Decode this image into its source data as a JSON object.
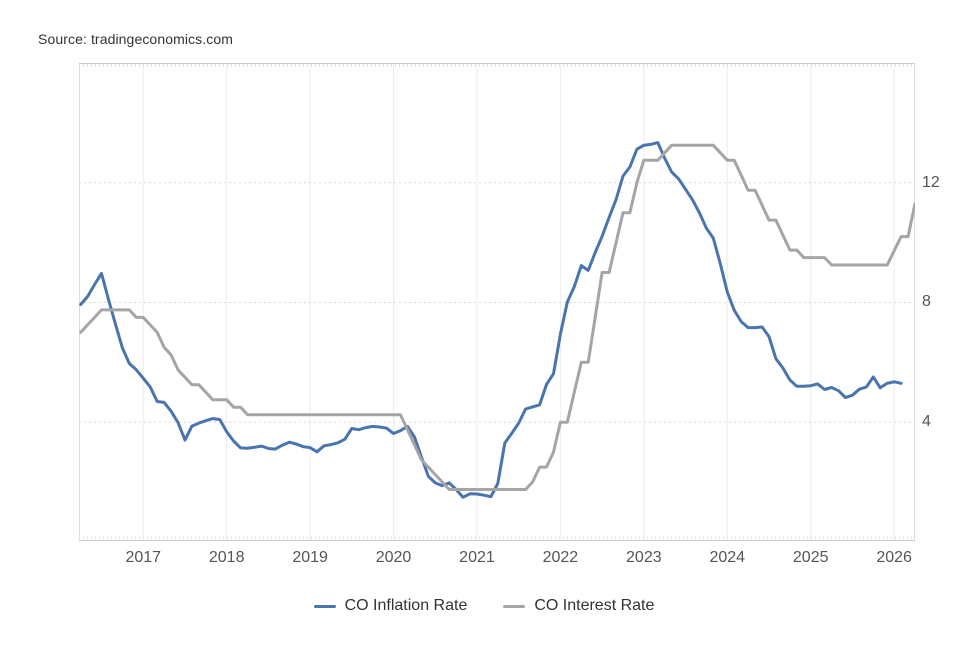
{
  "source": {
    "label": "Source: tradingeconomics.com"
  },
  "legend": [
    {
      "label": "CO Inflation Rate",
      "color": "#4a74ad"
    },
    {
      "label": "CO Interest Rate",
      "color": "#a5a5a5"
    }
  ],
  "colors": {
    "background": "#ffffff",
    "inflation_line": "#4a74ad",
    "interest_line": "#a5a5a5",
    "grid_line": "#ececec",
    "grid_dotted": "#d9d9d9",
    "plot_border": "#cccccc",
    "tick_text": "#555555",
    "legend_text": "#333333"
  },
  "chart_data": {
    "type": "line",
    "title": "",
    "xlabel": "",
    "ylabel": "",
    "x_range": [
      2016.23,
      2026.25
    ],
    "y_range": [
      0.03,
      16
    ],
    "x_ticks": [
      {
        "t": 2017,
        "label": "2017"
      },
      {
        "t": 2018,
        "label": "2018"
      },
      {
        "t": 2019,
        "label": "2019"
      },
      {
        "t": 2020,
        "label": "2020"
      },
      {
        "t": 2021,
        "label": "2021"
      },
      {
        "t": 2022,
        "label": "2022"
      },
      {
        "t": 2023,
        "label": "2023"
      },
      {
        "t": 2024,
        "label": "2024"
      },
      {
        "t": 2025,
        "label": "2025"
      },
      {
        "t": 2026,
        "label": "2026"
      }
    ],
    "y_ticks": [
      {
        "v": 4,
        "label": "4"
      },
      {
        "v": 8,
        "label": "8"
      },
      {
        "v": 12,
        "label": "12"
      }
    ],
    "grid": true,
    "legend_position": "bottom",
    "series": [
      {
        "name": "CO Inflation Rate",
        "color": "#4a74ad",
        "width": 3,
        "points": [
          [
            2016.25,
            7.93
          ],
          [
            2016.333,
            8.2
          ],
          [
            2016.417,
            8.6
          ],
          [
            2016.5,
            8.97
          ],
          [
            2016.583,
            8.1
          ],
          [
            2016.667,
            7.27
          ],
          [
            2016.75,
            6.48
          ],
          [
            2016.833,
            5.96
          ],
          [
            2016.917,
            5.75
          ],
          [
            2017.0,
            5.47
          ],
          [
            2017.083,
            5.18
          ],
          [
            2017.167,
            4.69
          ],
          [
            2017.25,
            4.66
          ],
          [
            2017.333,
            4.37
          ],
          [
            2017.417,
            3.99
          ],
          [
            2017.5,
            3.4
          ],
          [
            2017.583,
            3.87
          ],
          [
            2017.667,
            3.97
          ],
          [
            2017.75,
            4.05
          ],
          [
            2017.833,
            4.12
          ],
          [
            2017.917,
            4.09
          ],
          [
            2018.0,
            3.68
          ],
          [
            2018.083,
            3.37
          ],
          [
            2018.167,
            3.14
          ],
          [
            2018.25,
            3.13
          ],
          [
            2018.333,
            3.16
          ],
          [
            2018.417,
            3.2
          ],
          [
            2018.5,
            3.12
          ],
          [
            2018.583,
            3.1
          ],
          [
            2018.667,
            3.23
          ],
          [
            2018.75,
            3.33
          ],
          [
            2018.833,
            3.27
          ],
          [
            2018.917,
            3.18
          ],
          [
            2019.0,
            3.15
          ],
          [
            2019.083,
            3.01
          ],
          [
            2019.167,
            3.21
          ],
          [
            2019.25,
            3.25
          ],
          [
            2019.333,
            3.31
          ],
          [
            2019.417,
            3.43
          ],
          [
            2019.5,
            3.79
          ],
          [
            2019.583,
            3.75
          ],
          [
            2019.667,
            3.82
          ],
          [
            2019.75,
            3.86
          ],
          [
            2019.833,
            3.84
          ],
          [
            2019.917,
            3.8
          ],
          [
            2020.0,
            3.62
          ],
          [
            2020.083,
            3.72
          ],
          [
            2020.167,
            3.86
          ],
          [
            2020.25,
            3.51
          ],
          [
            2020.333,
            2.85
          ],
          [
            2020.417,
            2.19
          ],
          [
            2020.5,
            1.97
          ],
          [
            2020.583,
            1.88
          ],
          [
            2020.667,
            1.97
          ],
          [
            2020.75,
            1.75
          ],
          [
            2020.833,
            1.49
          ],
          [
            2020.917,
            1.61
          ],
          [
            2021.0,
            1.6
          ],
          [
            2021.083,
            1.56
          ],
          [
            2021.167,
            1.51
          ],
          [
            2021.25,
            1.95
          ],
          [
            2021.333,
            3.3
          ],
          [
            2021.417,
            3.63
          ],
          [
            2021.5,
            3.97
          ],
          [
            2021.583,
            4.44
          ],
          [
            2021.667,
            4.51
          ],
          [
            2021.75,
            4.58
          ],
          [
            2021.833,
            5.26
          ],
          [
            2021.917,
            5.62
          ],
          [
            2022.0,
            6.94
          ],
          [
            2022.083,
            8.01
          ],
          [
            2022.167,
            8.53
          ],
          [
            2022.25,
            9.23
          ],
          [
            2022.333,
            9.07
          ],
          [
            2022.417,
            9.67
          ],
          [
            2022.5,
            10.21
          ],
          [
            2022.583,
            10.84
          ],
          [
            2022.667,
            11.44
          ],
          [
            2022.75,
            12.22
          ],
          [
            2022.833,
            12.53
          ],
          [
            2022.917,
            13.12
          ],
          [
            2023.0,
            13.25
          ],
          [
            2023.083,
            13.28
          ],
          [
            2023.167,
            13.34
          ],
          [
            2023.25,
            12.82
          ],
          [
            2023.333,
            12.36
          ],
          [
            2023.417,
            12.13
          ],
          [
            2023.5,
            11.78
          ],
          [
            2023.583,
            11.43
          ],
          [
            2023.667,
            10.99
          ],
          [
            2023.75,
            10.48
          ],
          [
            2023.833,
            10.15
          ],
          [
            2023.917,
            9.28
          ],
          [
            2024.0,
            8.35
          ],
          [
            2024.083,
            7.74
          ],
          [
            2024.167,
            7.36
          ],
          [
            2024.25,
            7.16
          ],
          [
            2024.333,
            7.16
          ],
          [
            2024.417,
            7.18
          ],
          [
            2024.5,
            6.86
          ],
          [
            2024.583,
            6.12
          ],
          [
            2024.667,
            5.81
          ],
          [
            2024.75,
            5.41
          ],
          [
            2024.833,
            5.2
          ],
          [
            2024.917,
            5.2
          ],
          [
            2025.0,
            5.22
          ],
          [
            2025.083,
            5.28
          ],
          [
            2025.167,
            5.09
          ],
          [
            2025.25,
            5.16
          ],
          [
            2025.333,
            5.05
          ],
          [
            2025.417,
            4.82
          ],
          [
            2025.5,
            4.9
          ],
          [
            2025.583,
            5.1
          ],
          [
            2025.667,
            5.18
          ],
          [
            2025.75,
            5.51
          ],
          [
            2025.833,
            5.15
          ],
          [
            2025.917,
            5.3
          ],
          [
            2026.0,
            5.35
          ],
          [
            2026.083,
            5.3
          ]
        ]
      },
      {
        "name": "CO Interest Rate",
        "color": "#a5a5a5",
        "width": 3,
        "points": [
          [
            2016.25,
            7.0
          ],
          [
            2016.333,
            7.25
          ],
          [
            2016.417,
            7.5
          ],
          [
            2016.5,
            7.75
          ],
          [
            2016.833,
            7.75
          ],
          [
            2016.917,
            7.5
          ],
          [
            2017.0,
            7.5
          ],
          [
            2017.083,
            7.25
          ],
          [
            2017.167,
            7.0
          ],
          [
            2017.25,
            6.5
          ],
          [
            2017.333,
            6.25
          ],
          [
            2017.417,
            5.75
          ],
          [
            2017.5,
            5.5
          ],
          [
            2017.583,
            5.25
          ],
          [
            2017.667,
            5.25
          ],
          [
            2017.75,
            5.0
          ],
          [
            2017.833,
            4.75
          ],
          [
            2018.0,
            4.75
          ],
          [
            2018.083,
            4.5
          ],
          [
            2018.167,
            4.5
          ],
          [
            2018.25,
            4.25
          ],
          [
            2020.083,
            4.25
          ],
          [
            2020.167,
            3.75
          ],
          [
            2020.25,
            3.25
          ],
          [
            2020.333,
            2.75
          ],
          [
            2020.417,
            2.5
          ],
          [
            2020.5,
            2.25
          ],
          [
            2020.583,
            2.0
          ],
          [
            2020.667,
            1.75
          ],
          [
            2021.583,
            1.75
          ],
          [
            2021.667,
            2.0
          ],
          [
            2021.75,
            2.5
          ],
          [
            2021.833,
            2.5
          ],
          [
            2021.917,
            3.0
          ],
          [
            2022.0,
            4.0
          ],
          [
            2022.083,
            4.0
          ],
          [
            2022.167,
            5.0
          ],
          [
            2022.25,
            6.0
          ],
          [
            2022.333,
            6.0
          ],
          [
            2022.417,
            7.5
          ],
          [
            2022.5,
            9.0
          ],
          [
            2022.583,
            9.0
          ],
          [
            2022.667,
            10.0
          ],
          [
            2022.75,
            11.0
          ],
          [
            2022.833,
            11.0
          ],
          [
            2022.917,
            12.0
          ],
          [
            2023.0,
            12.75
          ],
          [
            2023.167,
            12.75
          ],
          [
            2023.25,
            13.0
          ],
          [
            2023.333,
            13.25
          ],
          [
            2023.833,
            13.25
          ],
          [
            2023.917,
            13.0
          ],
          [
            2024.0,
            12.75
          ],
          [
            2024.083,
            12.75
          ],
          [
            2024.167,
            12.25
          ],
          [
            2024.25,
            11.75
          ],
          [
            2024.333,
            11.75
          ],
          [
            2024.417,
            11.25
          ],
          [
            2024.5,
            10.75
          ],
          [
            2024.583,
            10.75
          ],
          [
            2024.667,
            10.25
          ],
          [
            2024.75,
            9.75
          ],
          [
            2024.833,
            9.75
          ],
          [
            2024.917,
            9.5
          ],
          [
            2025.167,
            9.5
          ],
          [
            2025.25,
            9.25
          ],
          [
            2025.917,
            9.25
          ],
          [
            2026.083,
            10.2
          ],
          [
            2026.167,
            10.2
          ],
          [
            2026.25,
            11.3
          ]
        ]
      }
    ]
  }
}
